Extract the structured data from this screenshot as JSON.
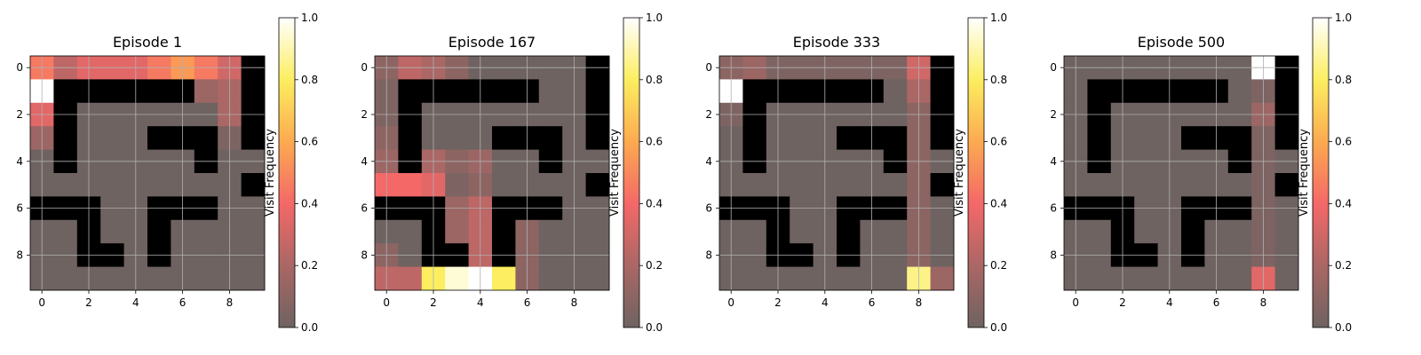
{
  "chart_data": [
    {
      "type": "heatmap",
      "title": "Episode 1",
      "colorbar_label": "Visit Frequency",
      "colorbar_ticks": [
        "0.0",
        "0.2",
        "0.4",
        "0.6",
        "0.8",
        "1.0"
      ],
      "x_ticks": [
        "0",
        "2",
        "4",
        "6",
        "8"
      ],
      "y_ticks": [
        "0",
        "2",
        "4",
        "6",
        "8"
      ],
      "walls": [
        [
          0,
          9
        ],
        [
          1,
          1
        ],
        [
          1,
          2
        ],
        [
          1,
          3
        ],
        [
          1,
          4
        ],
        [
          1,
          5
        ],
        [
          1,
          6
        ],
        [
          1,
          9
        ],
        [
          2,
          1
        ],
        [
          2,
          9
        ],
        [
          3,
          1
        ],
        [
          3,
          5
        ],
        [
          3,
          6
        ],
        [
          3,
          7
        ],
        [
          3,
          9
        ],
        [
          4,
          1
        ],
        [
          4,
          7
        ],
        [
          5,
          9
        ],
        [
          6,
          0
        ],
        [
          6,
          1
        ],
        [
          6,
          2
        ],
        [
          6,
          5
        ],
        [
          6,
          6
        ],
        [
          6,
          7
        ],
        [
          7,
          2
        ],
        [
          7,
          5
        ],
        [
          8,
          2
        ],
        [
          8,
          3
        ],
        [
          8,
          5
        ]
      ],
      "visits": [
        [
          0.45,
          0.25,
          0.35,
          0.35,
          0.35,
          0.45,
          0.55,
          0.45,
          0.3,
          0
        ],
        [
          1.0,
          0,
          0,
          0,
          0,
          0,
          0,
          0.15,
          0.2,
          0
        ],
        [
          0.35,
          0,
          0,
          0,
          0,
          0,
          0,
          0,
          0.2,
          0
        ],
        [
          0.15,
          0,
          0,
          0,
          0,
          0,
          0,
          0,
          0.05,
          0
        ],
        [
          0,
          0,
          0,
          0,
          0,
          0,
          0,
          0,
          0,
          0
        ],
        [
          0,
          0,
          0,
          0,
          0,
          0,
          0,
          0,
          0,
          0
        ],
        [
          0,
          0,
          0,
          0,
          0,
          0,
          0,
          0,
          0,
          0
        ],
        [
          0,
          0,
          0,
          0,
          0,
          0,
          0,
          0,
          0,
          0
        ],
        [
          0,
          0,
          0,
          0,
          0,
          0,
          0,
          0,
          0,
          0
        ],
        [
          0,
          0,
          0,
          0,
          0,
          0,
          0,
          0,
          0,
          0
        ]
      ]
    },
    {
      "type": "heatmap",
      "title": "Episode 167",
      "colorbar_label": "Visit Frequency",
      "colorbar_ticks": [
        "0.0",
        "0.2",
        "0.4",
        "0.6",
        "0.8",
        "1.0"
      ],
      "x_ticks": [
        "0",
        "2",
        "4",
        "6",
        "8"
      ],
      "y_ticks": [
        "0",
        "2",
        "4",
        "6",
        "8"
      ],
      "walls": [
        [
          0,
          9
        ],
        [
          1,
          1
        ],
        [
          1,
          2
        ],
        [
          1,
          3
        ],
        [
          1,
          4
        ],
        [
          1,
          5
        ],
        [
          1,
          6
        ],
        [
          1,
          9
        ],
        [
          2,
          1
        ],
        [
          2,
          9
        ],
        [
          3,
          1
        ],
        [
          3,
          5
        ],
        [
          3,
          6
        ],
        [
          3,
          7
        ],
        [
          3,
          9
        ],
        [
          4,
          1
        ],
        [
          4,
          7
        ],
        [
          5,
          9
        ],
        [
          6,
          0
        ],
        [
          6,
          1
        ],
        [
          6,
          2
        ],
        [
          6,
          5
        ],
        [
          6,
          6
        ],
        [
          6,
          7
        ],
        [
          7,
          2
        ],
        [
          7,
          5
        ],
        [
          8,
          2
        ],
        [
          8,
          3
        ],
        [
          8,
          5
        ]
      ],
      "visits": [
        [
          0.1,
          0.25,
          0.2,
          0.1,
          0,
          0,
          0,
          0,
          0,
          0
        ],
        [
          0.05,
          0,
          0,
          0,
          0,
          0,
          0,
          0,
          0,
          0
        ],
        [
          0.05,
          0,
          0,
          0,
          0,
          0,
          0,
          0,
          0,
          0
        ],
        [
          0.1,
          0,
          0,
          0,
          0,
          0,
          0,
          0,
          0,
          0
        ],
        [
          0.15,
          0,
          0.2,
          0.1,
          0.15,
          0,
          0,
          0,
          0,
          0
        ],
        [
          0.4,
          0.4,
          0.35,
          0.05,
          0.1,
          0,
          0,
          0,
          0,
          0
        ],
        [
          0,
          0,
          0,
          0.15,
          0.25,
          0,
          0,
          0,
          0,
          0
        ],
        [
          0,
          0,
          0,
          0.15,
          0.25,
          0,
          0.1,
          0,
          0,
          0
        ],
        [
          0.1,
          0,
          0,
          0.15,
          0.25,
          0,
          0.1,
          0,
          0,
          0
        ],
        [
          0.25,
          0.25,
          0.8,
          0.95,
          1.0,
          0.8,
          0.1,
          0,
          0,
          0
        ]
      ]
    },
    {
      "type": "heatmap",
      "title": "Episode 333",
      "colorbar_label": "Visit Frequency",
      "colorbar_ticks": [
        "0.0",
        "0.2",
        "0.4",
        "0.6",
        "0.8",
        "1.0"
      ],
      "x_ticks": [
        "0",
        "2",
        "4",
        "6",
        "8"
      ],
      "y_ticks": [
        "0",
        "2",
        "4",
        "6",
        "8"
      ],
      "walls": [
        [
          0,
          9
        ],
        [
          1,
          1
        ],
        [
          1,
          2
        ],
        [
          1,
          3
        ],
        [
          1,
          4
        ],
        [
          1,
          5
        ],
        [
          1,
          6
        ],
        [
          1,
          9
        ],
        [
          2,
          1
        ],
        [
          2,
          9
        ],
        [
          3,
          1
        ],
        [
          3,
          5
        ],
        [
          3,
          6
        ],
        [
          3,
          7
        ],
        [
          3,
          9
        ],
        [
          4,
          1
        ],
        [
          4,
          7
        ],
        [
          5,
          9
        ],
        [
          6,
          0
        ],
        [
          6,
          1
        ],
        [
          6,
          2
        ],
        [
          6,
          5
        ],
        [
          6,
          6
        ],
        [
          6,
          7
        ],
        [
          7,
          2
        ],
        [
          7,
          5
        ],
        [
          8,
          2
        ],
        [
          8,
          3
        ],
        [
          8,
          5
        ]
      ],
      "visits": [
        [
          0.1,
          0.15,
          0.05,
          0.05,
          0.05,
          0.05,
          0.05,
          0.05,
          0.3,
          0
        ],
        [
          1.0,
          0,
          0,
          0,
          0,
          0,
          0,
          0,
          0.2,
          0
        ],
        [
          0.05,
          0,
          0,
          0,
          0,
          0,
          0,
          0,
          0.1,
          0
        ],
        [
          0,
          0,
          0,
          0,
          0,
          0,
          0,
          0,
          0.1,
          0
        ],
        [
          0,
          0,
          0,
          0,
          0,
          0,
          0,
          0,
          0.1,
          0
        ],
        [
          0,
          0,
          0,
          0,
          0,
          0,
          0,
          0,
          0.1,
          0
        ],
        [
          0,
          0,
          0,
          0,
          0,
          0,
          0,
          0,
          0.1,
          0
        ],
        [
          0,
          0,
          0,
          0,
          0,
          0,
          0,
          0,
          0.1,
          0
        ],
        [
          0,
          0,
          0,
          0,
          0,
          0,
          0,
          0,
          0.1,
          0
        ],
        [
          0,
          0,
          0,
          0,
          0,
          0,
          0,
          0,
          0.85,
          0.15
        ]
      ]
    },
    {
      "type": "heatmap",
      "title": "Episode 500",
      "colorbar_label": "Visit Frequency",
      "colorbar_ticks": [
        "0.0",
        "0.2",
        "0.4",
        "0.6",
        "0.8",
        "1.0"
      ],
      "x_ticks": [
        "0",
        "2",
        "4",
        "6",
        "8"
      ],
      "y_ticks": [
        "0",
        "2",
        "4",
        "6",
        "8"
      ],
      "walls": [
        [
          0,
          9
        ],
        [
          1,
          1
        ],
        [
          1,
          2
        ],
        [
          1,
          3
        ],
        [
          1,
          4
        ],
        [
          1,
          5
        ],
        [
          1,
          6
        ],
        [
          1,
          9
        ],
        [
          2,
          1
        ],
        [
          2,
          9
        ],
        [
          3,
          1
        ],
        [
          3,
          5
        ],
        [
          3,
          6
        ],
        [
          3,
          7
        ],
        [
          3,
          9
        ],
        [
          4,
          1
        ],
        [
          4,
          7
        ],
        [
          5,
          9
        ],
        [
          6,
          0
        ],
        [
          6,
          1
        ],
        [
          6,
          2
        ],
        [
          6,
          5
        ],
        [
          6,
          6
        ],
        [
          6,
          7
        ],
        [
          7,
          2
        ],
        [
          7,
          5
        ],
        [
          8,
          2
        ],
        [
          8,
          3
        ],
        [
          8,
          5
        ]
      ],
      "visits": [
        [
          0,
          0,
          0,
          0,
          0,
          0,
          0,
          0,
          1.0,
          0
        ],
        [
          0,
          0,
          0,
          0,
          0,
          0,
          0,
          0,
          0.05,
          0
        ],
        [
          0,
          0,
          0,
          0,
          0,
          0,
          0,
          0,
          0.15,
          0
        ],
        [
          0,
          0,
          0,
          0,
          0,
          0,
          0,
          0,
          0.05,
          0
        ],
        [
          0,
          0,
          0,
          0,
          0,
          0,
          0,
          0,
          0.05,
          0
        ],
        [
          0,
          0,
          0,
          0,
          0,
          0,
          0,
          0,
          0.05,
          0
        ],
        [
          0,
          0,
          0,
          0,
          0,
          0,
          0,
          0,
          0.05,
          0
        ],
        [
          0,
          0,
          0,
          0,
          0,
          0,
          0,
          0,
          0.05,
          0
        ],
        [
          0,
          0,
          0,
          0,
          0,
          0,
          0,
          0,
          0.05,
          0
        ],
        [
          0,
          0,
          0,
          0,
          0,
          0,
          0,
          0,
          0.35,
          0
        ]
      ]
    }
  ]
}
